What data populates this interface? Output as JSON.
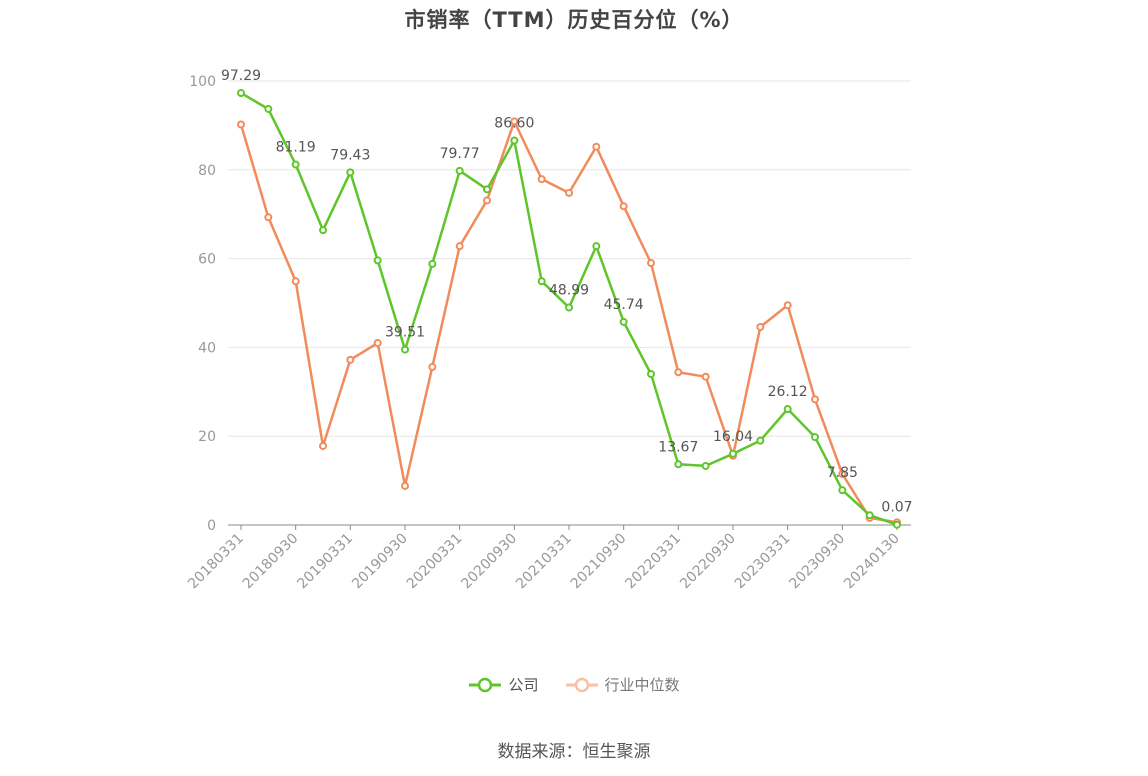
{
  "title": "市销率（TTM）历史百分位（%）",
  "source": "数据来源：恒生聚源",
  "legend": [
    {
      "name": "公司",
      "color": "#5ec52b"
    },
    {
      "name": "行业中位数",
      "color": "#f28b5c"
    }
  ],
  "chart_data": {
    "type": "line",
    "ylim": [
      0,
      100
    ],
    "yticks": [
      0,
      20,
      40,
      60,
      80,
      100
    ],
    "x": [
      "20180331",
      "20180630",
      "20180930",
      "20181231",
      "20190331",
      "20190630",
      "20190930",
      "20191231",
      "20200331",
      "20200630",
      "20200930",
      "20201231",
      "20210331",
      "20210630",
      "20210930",
      "20211231",
      "20220331",
      "20220630",
      "20220930",
      "20221231",
      "20230331",
      "20230630",
      "20230930",
      "20231231",
      "20240130"
    ],
    "xtick_labels": [
      "20180331",
      "20180930",
      "20190331",
      "20190930",
      "20200331",
      "20200930",
      "20210331",
      "20210930",
      "20220331",
      "20220930",
      "20230331",
      "20230930",
      "20240130"
    ],
    "series": [
      {
        "name": "公司",
        "color": "#5ec52b",
        "values": [
          97.29,
          93.7,
          81.19,
          66.4,
          79.43,
          59.6,
          39.51,
          58.8,
          79.77,
          75.6,
          86.6,
          54.9,
          48.99,
          62.8,
          45.74,
          34.0,
          13.67,
          13.3,
          16.04,
          19.0,
          26.12,
          19.8,
          7.85,
          2.2,
          0.07
        ],
        "data_labels": {
          "0": "97.29",
          "2": "81.19",
          "4": "79.43",
          "6": "39.51",
          "8": "79.77",
          "10": "86.60",
          "12": "48.99",
          "14": "45.74",
          "16": "13.67",
          "18": "16.04",
          "20": "26.12",
          "22": "7.85",
          "24": "0.07"
        }
      },
      {
        "name": "行业中位数",
        "color": "#f28b5c",
        "values": [
          90.2,
          69.3,
          54.9,
          17.8,
          37.2,
          41.0,
          8.8,
          35.6,
          62.8,
          73.1,
          90.9,
          77.9,
          74.8,
          85.2,
          71.8,
          59.0,
          34.4,
          33.4,
          15.6,
          44.6,
          49.5,
          28.3,
          11.5,
          1.6,
          0.6
        ]
      }
    ]
  }
}
